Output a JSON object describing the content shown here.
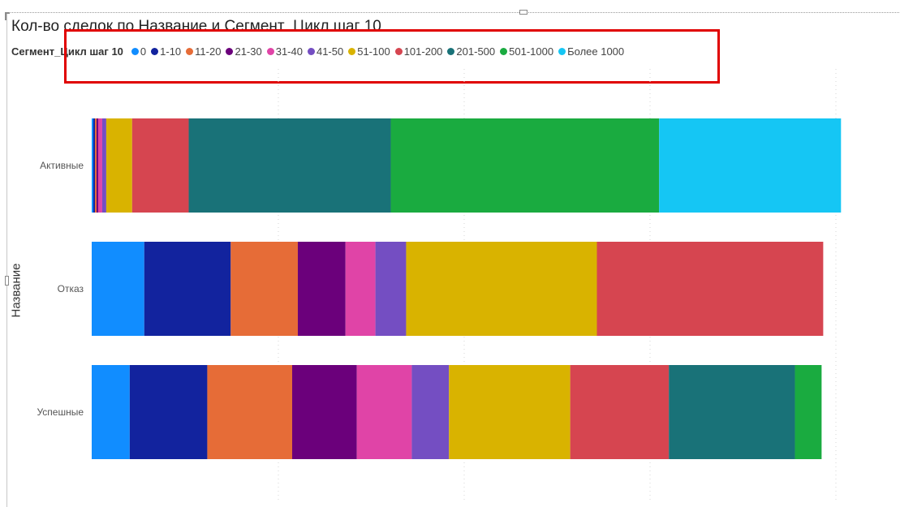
{
  "chart_data": {
    "type": "bar",
    "orientation": "horizontal",
    "stacked": true,
    "title": "Кол-во сделок по Название и Сегмент_Цикл шаг 10",
    "ylabel": "Название",
    "xlabel": "",
    "legend_title": "Сегмент_Цикл шаг 10",
    "legend_position": "top-left",
    "grid": true,
    "categories": [
      "Активные",
      "Отказ",
      "Успешные"
    ],
    "series": [
      {
        "name": "0",
        "color": "#118DFF",
        "values": [
          0.2,
          6.5,
          4.7
        ]
      },
      {
        "name": "1-10",
        "color": "#12239E",
        "values": [
          0.2,
          10.7,
          9.6
        ]
      },
      {
        "name": "11-20",
        "color": "#E66C37",
        "values": [
          0.2,
          8.3,
          10.5
        ]
      },
      {
        "name": "21-30",
        "color": "#6B007B",
        "values": [
          0.2,
          5.9,
          8.0
        ]
      },
      {
        "name": "31-40",
        "color": "#E044A7",
        "values": [
          0.5,
          3.7,
          6.8
        ]
      },
      {
        "name": "41-50",
        "color": "#744EC2",
        "values": [
          0.5,
          3.8,
          4.6
        ]
      },
      {
        "name": "51-100",
        "color": "#D9B300",
        "values": [
          3.2,
          23.6,
          15.0
        ]
      },
      {
        "name": "101-200",
        "color": "#D64550",
        "values": [
          7.0,
          28.0,
          12.2
        ]
      },
      {
        "name": "201-500",
        "color": "#197278",
        "values": [
          25.0,
          0,
          15.6
        ]
      },
      {
        "name": "501-1000",
        "color": "#1AAB40",
        "values": [
          33.2,
          0,
          3.3
        ]
      },
      {
        "name": "Более 1000",
        "color": "#15C6F4",
        "values": [
          22.5,
          0,
          0
        ]
      }
    ],
    "xlim": [
      0,
      100
    ]
  }
}
